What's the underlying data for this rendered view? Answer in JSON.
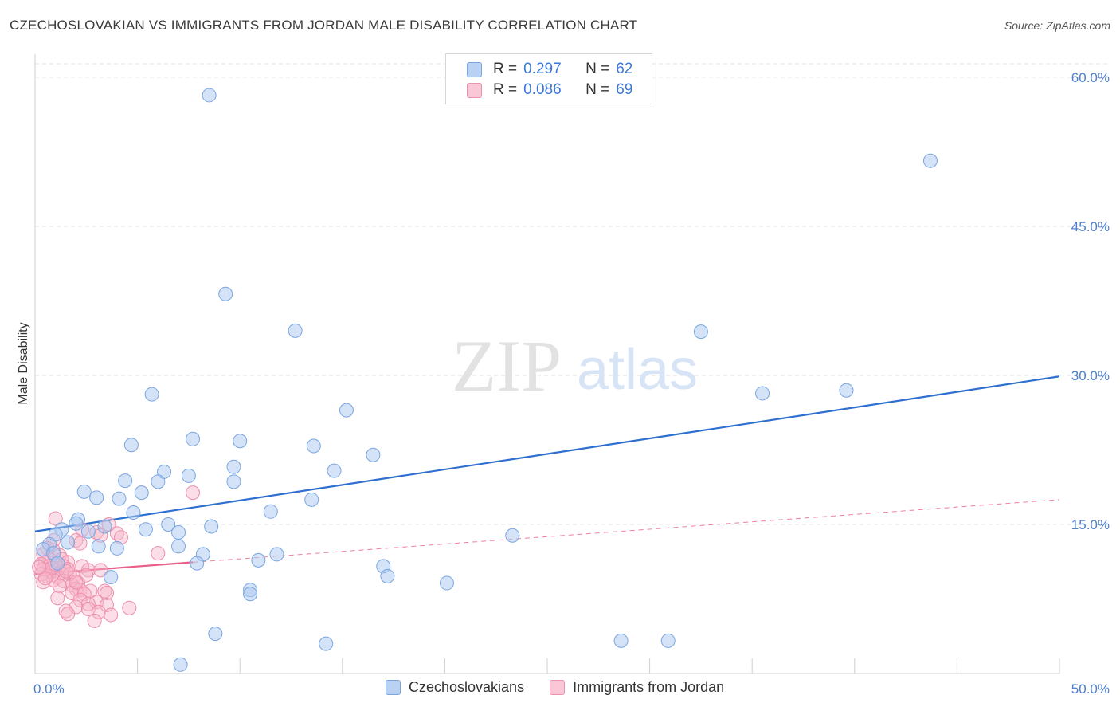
{
  "header": {
    "title": "CZECHOSLOVAKIAN VS IMMIGRANTS FROM JORDAN MALE DISABILITY CORRELATION CHART",
    "source": "Source: ZipAtlas.com"
  },
  "watermark": {
    "zip": "ZIP",
    "atlas": "atlas"
  },
  "legend_top": {
    "rows": [
      {
        "r_label": "R =",
        "r_value": "0.297",
        "n_label": "N =",
        "n_value": "62"
      },
      {
        "r_label": "R =",
        "r_value": "0.086",
        "n_label": "N =",
        "n_value": "69"
      }
    ]
  },
  "legend_bottom": {
    "items": [
      {
        "label": "Czechoslovakians"
      },
      {
        "label": "Immigrants from Jordan"
      }
    ]
  },
  "colors": {
    "blue_fill": "#a9c7ef",
    "blue_stroke": "#7aa6e0",
    "blue_line": "#2f6fd0",
    "pink_fill": "#f7b6c9",
    "pink_stroke": "#ee8fad",
    "pink_line": "#e8608a",
    "grid": "#e3e3e3",
    "axis_text": "#4a7fd0"
  },
  "chart_data": {
    "type": "scatter",
    "title": "CZECHOSLOVAKIAN VS IMMIGRANTS FROM JORDAN MALE DISABILITY CORRELATION CHART",
    "xlabel": "",
    "ylabel": "Male Disability",
    "xlim": [
      0,
      50
    ],
    "ylim": [
      0,
      60
    ],
    "x_tick_labels": [
      {
        "value": 0,
        "label": "0.0%"
      },
      {
        "value": 50,
        "label": "50.0%"
      }
    ],
    "y_tick_labels": [
      {
        "value": 15,
        "label": "15.0%"
      },
      {
        "value": 30,
        "label": "30.0%"
      },
      {
        "value": 45,
        "label": "45.0%"
      },
      {
        "value": 60,
        "label": "60.0%"
      }
    ],
    "grid": true,
    "series": [
      {
        "name": "Czechoslovakians",
        "r": 0.297,
        "n": 62,
        "trend": {
          "x": [
            0,
            50
          ],
          "y": [
            14.3,
            29.9
          ],
          "style": "solid"
        },
        "points": [
          [
            8.5,
            58.2
          ],
          [
            43.7,
            51.6
          ],
          [
            9.3,
            38.2
          ],
          [
            12.7,
            34.5
          ],
          [
            32.5,
            34.4
          ],
          [
            5.7,
            28.1
          ],
          [
            35.5,
            28.2
          ],
          [
            39.6,
            28.5
          ],
          [
            15.2,
            26.5
          ],
          [
            4.7,
            23.0
          ],
          [
            7.7,
            23.6
          ],
          [
            10.0,
            23.4
          ],
          [
            13.6,
            22.9
          ],
          [
            16.5,
            22.0
          ],
          [
            9.7,
            20.8
          ],
          [
            6.3,
            20.3
          ],
          [
            14.6,
            20.4
          ],
          [
            7.5,
            19.9
          ],
          [
            4.4,
            19.4
          ],
          [
            6.0,
            19.3
          ],
          [
            9.7,
            19.3
          ],
          [
            2.4,
            18.3
          ],
          [
            3.0,
            17.7
          ],
          [
            4.1,
            17.6
          ],
          [
            5.2,
            18.2
          ],
          [
            13.5,
            17.5
          ],
          [
            11.5,
            16.3
          ],
          [
            4.8,
            16.2
          ],
          [
            2.1,
            15.5
          ],
          [
            2.0,
            15.1
          ],
          [
            6.5,
            15.0
          ],
          [
            8.6,
            14.8
          ],
          [
            1.3,
            14.5
          ],
          [
            1.0,
            14.0
          ],
          [
            5.4,
            14.5
          ],
          [
            2.6,
            14.3
          ],
          [
            7.0,
            14.2
          ],
          [
            3.4,
            14.8
          ],
          [
            23.3,
            13.9
          ],
          [
            1.6,
            13.2
          ],
          [
            0.7,
            13.0
          ],
          [
            0.4,
            12.5
          ],
          [
            3.1,
            12.8
          ],
          [
            4.0,
            12.6
          ],
          [
            0.9,
            12.1
          ],
          [
            7.0,
            12.8
          ],
          [
            8.2,
            12.0
          ],
          [
            11.8,
            12.0
          ],
          [
            7.9,
            11.1
          ],
          [
            10.9,
            11.4
          ],
          [
            17.0,
            10.8
          ],
          [
            17.2,
            9.8
          ],
          [
            3.7,
            9.7
          ],
          [
            20.1,
            9.1
          ],
          [
            10.5,
            8.4
          ],
          [
            10.5,
            8.0
          ],
          [
            8.8,
            4.0
          ],
          [
            14.2,
            3.0
          ],
          [
            28.6,
            3.3
          ],
          [
            30.9,
            3.3
          ],
          [
            7.1,
            0.9
          ],
          [
            1.1,
            11.1
          ]
        ]
      },
      {
        "name": "Immigrants from Jordan",
        "r": 0.086,
        "n": 69,
        "trend": {
          "x": [
            0,
            7.7
          ],
          "y": [
            10.0,
            11.2
          ],
          "style": "solid",
          "extended": {
            "x": [
              7.7,
              50
            ],
            "y": [
              11.2,
              17.5
            ],
            "style": "dashed"
          }
        },
        "points": [
          [
            7.7,
            18.2
          ],
          [
            1.0,
            15.6
          ],
          [
            3.6,
            15.0
          ],
          [
            2.3,
            14.5
          ],
          [
            3.0,
            14.2
          ],
          [
            4.0,
            14.1
          ],
          [
            4.2,
            13.7
          ],
          [
            3.2,
            13.9
          ],
          [
            0.9,
            13.4
          ],
          [
            2.0,
            13.4
          ],
          [
            2.2,
            13.1
          ],
          [
            0.6,
            12.6
          ],
          [
            0.9,
            12.4
          ],
          [
            0.4,
            12.0
          ],
          [
            1.2,
            11.9
          ],
          [
            6.0,
            12.1
          ],
          [
            0.7,
            11.5
          ],
          [
            1.3,
            11.5
          ],
          [
            0.5,
            11.2
          ],
          [
            1.6,
            11.2
          ],
          [
            0.3,
            11.0
          ],
          [
            0.7,
            10.8
          ],
          [
            1.4,
            10.8
          ],
          [
            2.3,
            10.8
          ],
          [
            0.4,
            10.5
          ],
          [
            1.0,
            10.4
          ],
          [
            1.6,
            10.5
          ],
          [
            2.6,
            10.4
          ],
          [
            0.8,
            10.2
          ],
          [
            1.3,
            10.1
          ],
          [
            0.3,
            10.0
          ],
          [
            1.7,
            10.0
          ],
          [
            0.6,
            9.8
          ],
          [
            1.1,
            9.7
          ],
          [
            1.9,
            9.7
          ],
          [
            2.5,
            9.9
          ],
          [
            0.9,
            9.4
          ],
          [
            1.4,
            9.3
          ],
          [
            0.4,
            9.2
          ],
          [
            2.1,
            9.1
          ],
          [
            1.8,
            8.9
          ],
          [
            1.2,
            8.8
          ],
          [
            2.0,
            8.5
          ],
          [
            2.2,
            8.4
          ],
          [
            2.7,
            8.3
          ],
          [
            3.4,
            8.3
          ],
          [
            1.8,
            8.1
          ],
          [
            2.4,
            8.0
          ],
          [
            3.5,
            8.1
          ],
          [
            1.1,
            7.6
          ],
          [
            2.2,
            7.4
          ],
          [
            3.0,
            7.2
          ],
          [
            2.6,
            7.0
          ],
          [
            3.5,
            6.9
          ],
          [
            2.0,
            6.7
          ],
          [
            2.6,
            6.5
          ],
          [
            1.5,
            6.3
          ],
          [
            3.1,
            6.2
          ],
          [
            4.6,
            6.6
          ],
          [
            1.6,
            6.0
          ],
          [
            3.7,
            5.9
          ],
          [
            2.9,
            5.3
          ],
          [
            0.8,
            10.6
          ],
          [
            1.0,
            11.0
          ],
          [
            0.5,
            9.6
          ],
          [
            1.5,
            10.3
          ],
          [
            2.0,
            9.2
          ],
          [
            3.2,
            10.4
          ],
          [
            0.2,
            10.7
          ]
        ]
      }
    ]
  }
}
